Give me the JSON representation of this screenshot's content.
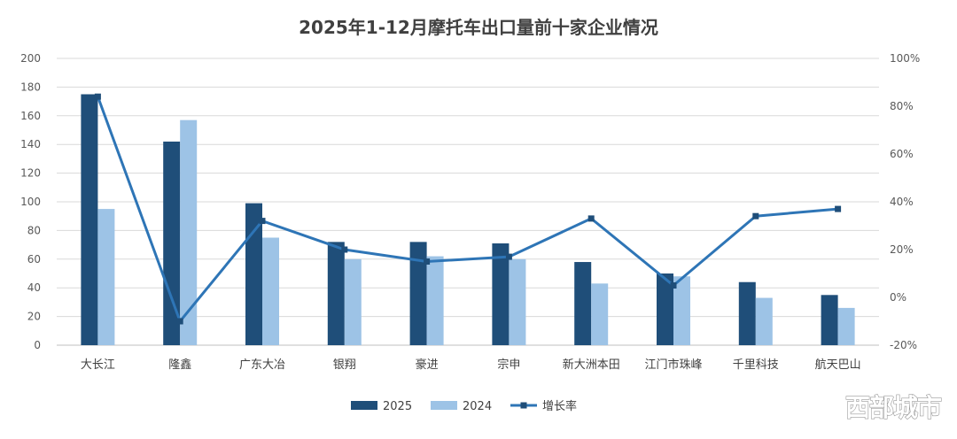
{
  "chart_data": {
    "type": "bar",
    "title": "2025年1-12月摩托车出口量前十家企业情况",
    "categories": [
      "大长江",
      "隆鑫",
      "广东大冶",
      "银翔",
      "豪进",
      "宗申",
      "新大洲本田",
      "江门市珠峰",
      "千里科技",
      "航天巴山"
    ],
    "series": [
      {
        "name": "2025",
        "type": "bar",
        "axis": "left",
        "color": "#1f4e79",
        "values": [
          175,
          142,
          99,
          72,
          72,
          71,
          58,
          50,
          44,
          35
        ]
      },
      {
        "name": "2024",
        "type": "bar",
        "axis": "left",
        "color": "#9dc3e6",
        "values": [
          95,
          157,
          75,
          60,
          62,
          60,
          43,
          48,
          33,
          26
        ]
      },
      {
        "name": "增长率",
        "type": "line",
        "axis": "right",
        "color": "#2e75b6",
        "values": [
          84,
          -10,
          32,
          20,
          15,
          17,
          33,
          5,
          34,
          37
        ]
      }
    ],
    "y_left": {
      "min": 0,
      "max": 200,
      "step": 20,
      "ticks": [
        "0",
        "20",
        "40",
        "60",
        "80",
        "100",
        "120",
        "140",
        "160",
        "180",
        "200"
      ]
    },
    "y_right": {
      "min": -20,
      "max": 100,
      "step": 20,
      "ticks": [
        "-20%",
        "0%",
        "20%",
        "40%",
        "60%",
        "80%",
        "100%"
      ]
    },
    "grid": true,
    "legend": "bottom-center"
  },
  "watermark": "西部城市"
}
